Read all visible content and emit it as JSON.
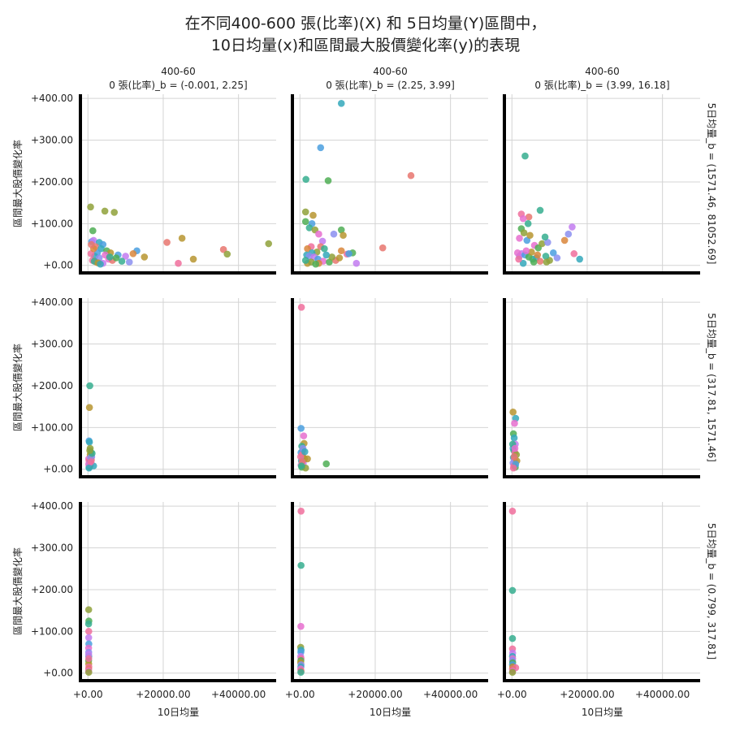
{
  "title_line1": "在不同400-600 張(比率)(X) 和 5日均量(Y)區間中，",
  "title_line2": "10日均量(x)和區間最大股價變化率(y)的表現",
  "col_titles": [
    [
      "400-60",
      "0 張(比率)_b = (-0.001, 2.25]"
    ],
    [
      "400-60",
      "0 張(比率)_b = (2.25, 3.99]"
    ],
    [
      "400-60",
      "0 張(比率)_b = (3.99, 16.18]"
    ]
  ],
  "row_titles": [
    "5日均量_b = (1571.46, 81052.69]",
    "5日均量_b = (317.81, 1571.46]",
    "5日均量_b = (0.799, 317.81]"
  ],
  "x_label": "10日均量",
  "y_label": "區間最大股價變化率",
  "x_ticks": [
    "+0.00",
    "+20000.00",
    "+40000.00"
  ],
  "y_ticks": [
    "+0.00",
    "+100.00",
    "+200.00",
    "+300.00",
    "+400.00"
  ],
  "chart_data": {
    "type": "scatter",
    "layout": "facet-grid-3x3",
    "xlim": [
      -2000,
      50000
    ],
    "ylim": [
      -18,
      410
    ],
    "grid": true,
    "x_tick_values": [
      0,
      20000,
      40000
    ],
    "y_tick_values": [
      0,
      100,
      200,
      300,
      400
    ],
    "palette": [
      "#e8766e",
      "#d9863b",
      "#b79530",
      "#8fa13a",
      "#4fae55",
      "#36ae8f",
      "#34a8bb",
      "#4a9fdf",
      "#8b8ff0",
      "#c27bf0",
      "#e66fcf",
      "#f06e9c"
    ],
    "panels": [
      {
        "row": 0,
        "col": 0,
        "points": [
          [
            700,
            140,
            3
          ],
          [
            4500,
            130,
            3
          ],
          [
            7000,
            127,
            3
          ],
          [
            1300,
            83,
            4
          ],
          [
            1000,
            57,
            7
          ],
          [
            1500,
            60,
            9
          ],
          [
            3000,
            55,
            6
          ],
          [
            4000,
            50,
            7
          ],
          [
            2000,
            45,
            0
          ],
          [
            3500,
            40,
            6
          ],
          [
            5000,
            35,
            4
          ],
          [
            6000,
            30,
            2
          ],
          [
            8000,
            25,
            7
          ],
          [
            10000,
            22,
            9
          ],
          [
            13000,
            35,
            7
          ],
          [
            15000,
            20,
            2
          ],
          [
            21000,
            55,
            0
          ],
          [
            25000,
            65,
            2
          ],
          [
            28000,
            15,
            2
          ],
          [
            36000,
            38,
            0
          ],
          [
            37000,
            27,
            3
          ],
          [
            48000,
            52,
            3
          ],
          [
            24000,
            5,
            11
          ],
          [
            9000,
            10,
            5
          ],
          [
            11000,
            8,
            8
          ],
          [
            2500,
            30,
            7
          ],
          [
            1800,
            22,
            6
          ],
          [
            2200,
            8,
            1
          ],
          [
            4000,
            5,
            9
          ],
          [
            5500,
            15,
            10
          ],
          [
            6500,
            12,
            0
          ],
          [
            7500,
            18,
            4
          ],
          [
            1200,
            12,
            11
          ],
          [
            3000,
            18,
            8
          ],
          [
            4600,
            25,
            10
          ],
          [
            1700,
            10,
            5
          ],
          [
            2700,
            6,
            2
          ],
          [
            3300,
            3,
            6
          ],
          [
            800,
            28,
            11
          ],
          [
            1500,
            40,
            1
          ],
          [
            900,
            50,
            0
          ],
          [
            5800,
            20,
            5
          ],
          [
            12000,
            28,
            1
          ]
        ]
      },
      {
        "row": 0,
        "col": 1,
        "points": [
          [
            11000,
            388,
            6
          ],
          [
            5500,
            282,
            7
          ],
          [
            1600,
            206,
            5
          ],
          [
            7500,
            203,
            4
          ],
          [
            29500,
            215,
            0
          ],
          [
            1500,
            128,
            3
          ],
          [
            3500,
            120,
            2
          ],
          [
            1500,
            105,
            4
          ],
          [
            3200,
            100,
            7
          ],
          [
            2500,
            90,
            5
          ],
          [
            4000,
            85,
            3
          ],
          [
            11000,
            85,
            4
          ],
          [
            9000,
            75,
            8
          ],
          [
            11500,
            72,
            2
          ],
          [
            5000,
            75,
            10
          ],
          [
            6000,
            58,
            9
          ],
          [
            14000,
            30,
            4
          ],
          [
            22000,
            42,
            0
          ],
          [
            5500,
            45,
            0
          ],
          [
            3000,
            45,
            11
          ],
          [
            2000,
            40,
            1
          ],
          [
            6500,
            40,
            5
          ],
          [
            4500,
            32,
            3
          ],
          [
            3200,
            30,
            6
          ],
          [
            1800,
            25,
            6
          ],
          [
            2500,
            22,
            8
          ],
          [
            3800,
            20,
            9
          ],
          [
            4800,
            15,
            7
          ],
          [
            6200,
            10,
            10
          ],
          [
            7800,
            8,
            4
          ],
          [
            9500,
            12,
            0
          ],
          [
            10500,
            18,
            2
          ],
          [
            12500,
            27,
            11
          ],
          [
            13000,
            28,
            7
          ],
          [
            15000,
            5,
            9
          ],
          [
            2000,
            5,
            2
          ],
          [
            3000,
            8,
            3
          ],
          [
            5000,
            5,
            1
          ],
          [
            1500,
            12,
            5
          ],
          [
            4200,
            3,
            4
          ],
          [
            8500,
            20,
            3
          ],
          [
            7000,
            25,
            6
          ],
          [
            11000,
            35,
            1
          ]
        ]
      },
      {
        "row": 0,
        "col": 2,
        "points": [
          [
            3500,
            262,
            5
          ],
          [
            7500,
            132,
            5
          ],
          [
            4500,
            116,
            0
          ],
          [
            2500,
            123,
            11
          ],
          [
            3000,
            112,
            10
          ],
          [
            4300,
            100,
            5
          ],
          [
            16000,
            92,
            9
          ],
          [
            15000,
            75,
            8
          ],
          [
            2500,
            88,
            4
          ],
          [
            3200,
            78,
            3
          ],
          [
            2000,
            65,
            10
          ],
          [
            4000,
            60,
            7
          ],
          [
            4800,
            72,
            2
          ],
          [
            6000,
            48,
            10
          ],
          [
            7000,
            42,
            4
          ],
          [
            8000,
            52,
            3
          ],
          [
            9500,
            55,
            8
          ],
          [
            8800,
            68,
            5
          ],
          [
            11000,
            30,
            7
          ],
          [
            14000,
            60,
            1
          ],
          [
            16500,
            28,
            11
          ],
          [
            18000,
            15,
            6
          ],
          [
            10000,
            12,
            3
          ],
          [
            12000,
            18,
            8
          ],
          [
            5500,
            15,
            5
          ],
          [
            3000,
            5,
            6
          ],
          [
            2000,
            22,
            8
          ],
          [
            2600,
            28,
            9
          ],
          [
            3500,
            25,
            7
          ],
          [
            4500,
            20,
            4
          ],
          [
            5200,
            32,
            2
          ],
          [
            6500,
            18,
            6
          ],
          [
            9000,
            22,
            5
          ],
          [
            1500,
            30,
            10
          ],
          [
            1800,
            15,
            11
          ],
          [
            7500,
            10,
            0
          ],
          [
            9200,
            8,
            3
          ],
          [
            5800,
            8,
            4
          ],
          [
            3800,
            35,
            10
          ],
          [
            6800,
            25,
            1
          ]
        ]
      },
      {
        "row": 1,
        "col": 0,
        "points": [
          [
            500,
            200,
            5
          ],
          [
            400,
            148,
            2
          ],
          [
            300,
            68,
            7
          ],
          [
            400,
            65,
            6
          ],
          [
            600,
            50,
            3
          ],
          [
            800,
            40,
            4
          ],
          [
            1000,
            30,
            8
          ],
          [
            200,
            25,
            10
          ],
          [
            300,
            20,
            11
          ],
          [
            500,
            15,
            5
          ],
          [
            700,
            10,
            9
          ],
          [
            400,
            8,
            7
          ],
          [
            1500,
            8,
            6
          ],
          [
            300,
            5,
            4
          ],
          [
            600,
            35,
            2
          ],
          [
            900,
            22,
            0
          ],
          [
            200,
            12,
            10
          ],
          [
            700,
            28,
            8
          ],
          [
            1100,
            38,
            5
          ],
          [
            500,
            45,
            3
          ],
          [
            300,
            3,
            6
          ],
          [
            800,
            18,
            11
          ]
        ]
      },
      {
        "row": 1,
        "col": 1,
        "points": [
          [
            400,
            388,
            11
          ],
          [
            300,
            98,
            7
          ],
          [
            1000,
            80,
            10
          ],
          [
            1100,
            62,
            2
          ],
          [
            500,
            55,
            5
          ],
          [
            700,
            45,
            3
          ],
          [
            300,
            40,
            7
          ],
          [
            600,
            35,
            11
          ],
          [
            800,
            30,
            1
          ],
          [
            1200,
            25,
            2
          ],
          [
            400,
            20,
            6
          ],
          [
            900,
            15,
            9
          ],
          [
            300,
            10,
            10
          ],
          [
            500,
            5,
            4
          ],
          [
            7000,
            13,
            4
          ],
          [
            2000,
            25,
            2
          ],
          [
            1500,
            3,
            3
          ],
          [
            200,
            30,
            11
          ],
          [
            800,
            50,
            8
          ],
          [
            1300,
            42,
            6
          ],
          [
            600,
            18,
            0
          ],
          [
            400,
            8,
            5
          ]
        ]
      },
      {
        "row": 1,
        "col": 2,
        "points": [
          [
            300,
            137,
            2
          ],
          [
            1000,
            122,
            6
          ],
          [
            700,
            110,
            10
          ],
          [
            400,
            85,
            4
          ],
          [
            600,
            75,
            6
          ],
          [
            900,
            60,
            9
          ],
          [
            300,
            50,
            7
          ],
          [
            500,
            45,
            5
          ],
          [
            800,
            40,
            11
          ],
          [
            1200,
            35,
            3
          ],
          [
            400,
            28,
            6
          ],
          [
            700,
            22,
            10
          ],
          [
            300,
            15,
            8
          ],
          [
            500,
            8,
            11
          ],
          [
            900,
            5,
            4
          ],
          [
            1300,
            20,
            2
          ],
          [
            200,
            60,
            5
          ],
          [
            600,
            30,
            0
          ],
          [
            1000,
            12,
            7
          ],
          [
            400,
            3,
            11
          ],
          [
            800,
            50,
            10
          ]
        ]
      },
      {
        "row": 2,
        "col": 0,
        "points": [
          [
            200,
            152,
            3
          ],
          [
            250,
            125,
            4
          ],
          [
            180,
            118,
            5
          ],
          [
            220,
            100,
            11
          ],
          [
            200,
            85,
            9
          ],
          [
            240,
            70,
            7
          ],
          [
            180,
            60,
            10
          ],
          [
            200,
            50,
            8
          ],
          [
            220,
            40,
            6
          ],
          [
            180,
            30,
            4
          ],
          [
            200,
            22,
            2
          ],
          [
            240,
            15,
            11
          ],
          [
            200,
            10,
            0
          ],
          [
            180,
            5,
            10
          ],
          [
            220,
            2,
            3
          ],
          [
            190,
            45,
            9
          ],
          [
            210,
            35,
            11
          ]
        ]
      },
      {
        "row": 2,
        "col": 1,
        "points": [
          [
            300,
            388,
            11
          ],
          [
            300,
            258,
            5
          ],
          [
            250,
            112,
            10
          ],
          [
            200,
            62,
            3
          ],
          [
            300,
            55,
            6
          ],
          [
            250,
            50,
            7
          ],
          [
            200,
            40,
            9
          ],
          [
            300,
            35,
            11
          ],
          [
            250,
            30,
            4
          ],
          [
            200,
            25,
            2
          ],
          [
            300,
            20,
            8
          ],
          [
            250,
            15,
            6
          ],
          [
            200,
            10,
            10
          ],
          [
            300,
            5,
            0
          ],
          [
            250,
            2,
            5
          ]
        ]
      },
      {
        "row": 2,
        "col": 2,
        "points": [
          [
            150,
            388,
            11
          ],
          [
            150,
            198,
            5
          ],
          [
            150,
            83,
            5
          ],
          [
            150,
            58,
            11
          ],
          [
            200,
            48,
            9
          ],
          [
            150,
            40,
            6
          ],
          [
            200,
            35,
            10
          ],
          [
            150,
            30,
            8
          ],
          [
            200,
            25,
            4
          ],
          [
            150,
            20,
            7
          ],
          [
            200,
            15,
            2
          ],
          [
            1000,
            13,
            11
          ],
          [
            150,
            10,
            0
          ],
          [
            200,
            5,
            10
          ],
          [
            150,
            2,
            3
          ]
        ]
      }
    ]
  }
}
